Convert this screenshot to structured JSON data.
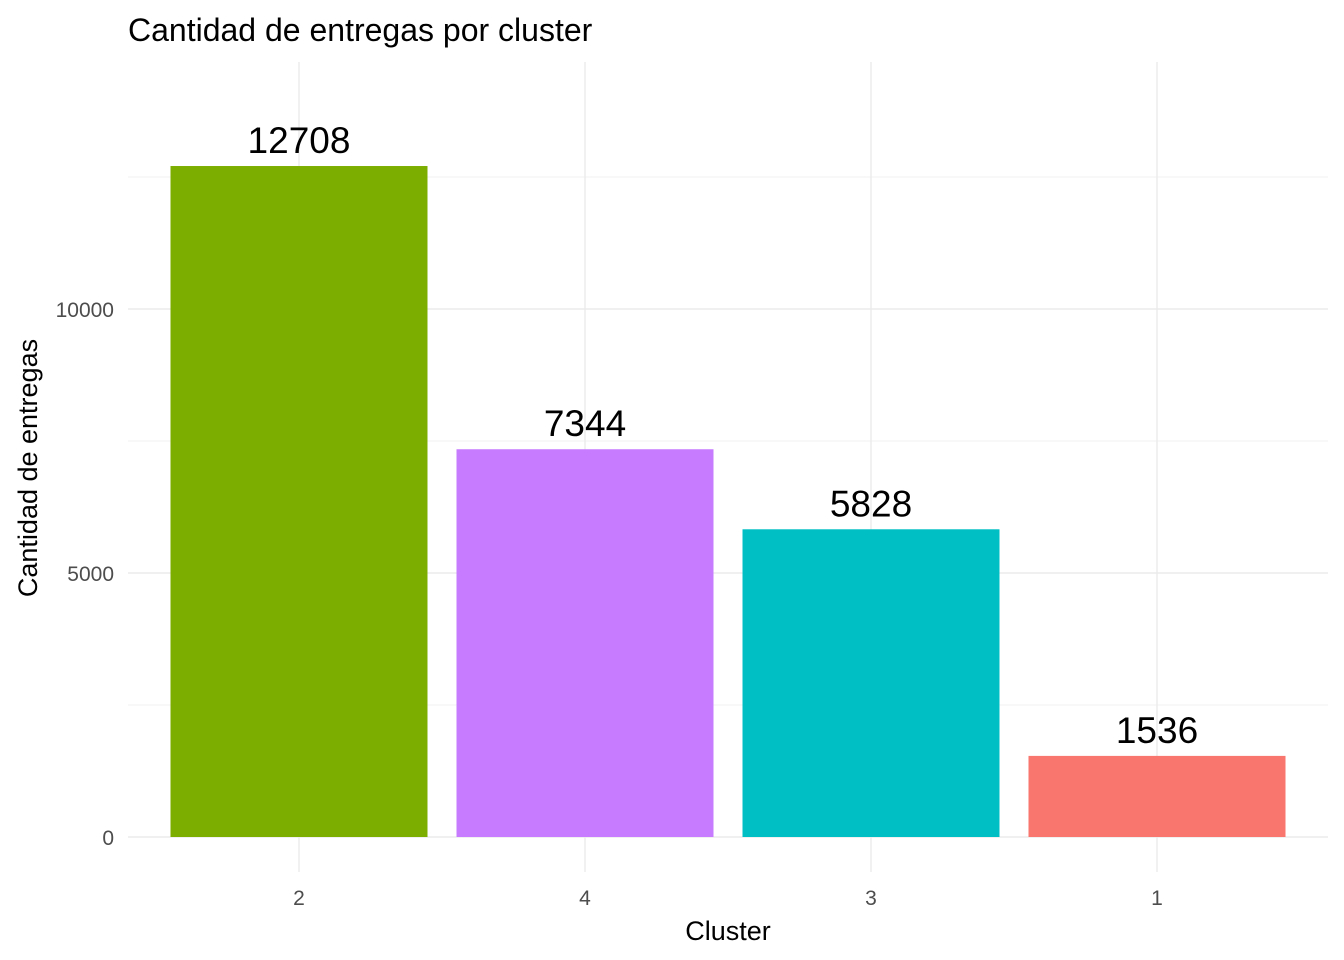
{
  "chart_data": {
    "type": "bar",
    "title": "Cantidad de entregas por cluster",
    "xlabel": "Cluster",
    "ylabel": "Cantidad de entregas",
    "categories": [
      "2",
      "4",
      "3",
      "1"
    ],
    "values": [
      12708,
      7344,
      5828,
      1536
    ],
    "data_labels": [
      "12708",
      "7344",
      "5828",
      "1536"
    ],
    "colors": [
      "#7CAE00",
      "#C77CFF",
      "#00BFC4",
      "#F8766D"
    ],
    "ylim": [
      0,
      14700
    ],
    "yticks": [
      0,
      5000,
      10000
    ],
    "ytick_labels": [
      "0",
      "5000",
      "10000"
    ],
    "grid": true,
    "legend": "none"
  }
}
